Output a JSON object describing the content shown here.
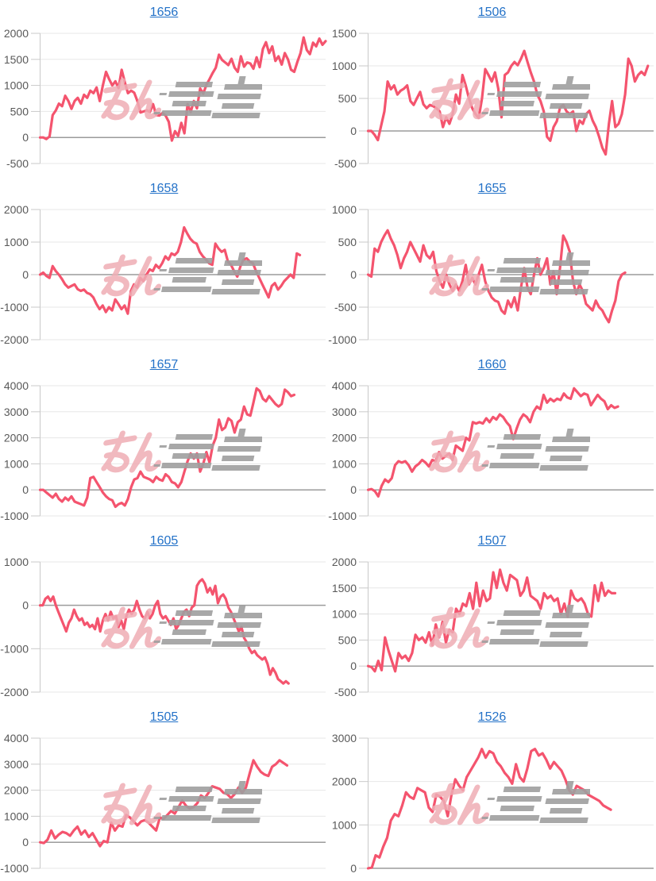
{
  "page": {
    "background": "#ffffff"
  },
  "chart_style": {
    "line_color": "#f4546e",
    "grid_color": "#e7e7e7",
    "zero_line_color": "#9b9b9b",
    "axis_color": "#c9c9c9",
    "tick_label_color": "#595959",
    "title_color": "#2472c8"
  },
  "watermark": {
    "icon": "site-logo-watermark",
    "pink_text": "みん",
    "gray_text_stylized": "logo glyphs with speed lines",
    "pink_color": "#efadb5",
    "gray_color": "#9f9f9f"
  },
  "chart_data": [
    {
      "type": "line",
      "title": "1656",
      "ylim": [
        -500,
        2000
      ],
      "ytick_step": 500,
      "end_frac": 1.0,
      "values": [
        0,
        0,
        -30,
        20,
        430,
        520,
        650,
        600,
        800,
        700,
        550,
        700,
        760,
        650,
        820,
        760,
        900,
        850,
        960,
        700,
        1000,
        1260,
        1120,
        1000,
        1080,
        950,
        1300,
        1060,
        850,
        900,
        860,
        700,
        480,
        500,
        520,
        490,
        640,
        430,
        420,
        470,
        420,
        300,
        -60,
        120,
        30,
        280,
        80,
        640,
        490,
        700,
        560,
        940,
        840,
        1010,
        1120,
        1240,
        1340,
        1590,
        1490,
        1440,
        1390,
        1510,
        1340,
        1260,
        1560,
        1360,
        1440,
        1420,
        1320,
        1540,
        1350,
        1700,
        1830,
        1620,
        1750,
        1470,
        1560,
        1400,
        1620,
        1500,
        1300,
        1260,
        1450,
        1620,
        1920,
        1680,
        1600,
        1820,
        1750,
        1900,
        1780,
        1850
      ]
    },
    {
      "type": "line",
      "title": "1506",
      "ylim": [
        -500,
        1500
      ],
      "ytick_step": 500,
      "end_frac": 0.98,
      "values": [
        0,
        0,
        -60,
        -140,
        80,
        300,
        760,
        640,
        700,
        560,
        620,
        650,
        700,
        460,
        400,
        500,
        600,
        410,
        350,
        400,
        380,
        350,
        300,
        60,
        210,
        110,
        260,
        560,
        420,
        860,
        700,
        500,
        350,
        260,
        200,
        500,
        950,
        860,
        760,
        900,
        650,
        210,
        860,
        900,
        1000,
        1060,
        1010,
        1110,
        1230,
        1060,
        900,
        760,
        560,
        460,
        300,
        -90,
        -150,
        60,
        150,
        360,
        400,
        300,
        260,
        300,
        0,
        160,
        110,
        260,
        310,
        160,
        60,
        -90,
        -260,
        -360,
        110,
        460,
        60,
        110,
        260,
        560,
        1110,
        1000,
        760,
        860,
        910,
        860,
        1000
      ]
    },
    {
      "type": "line",
      "title": "1658",
      "ylim": [
        -2000,
        2000
      ],
      "ytick_step": 1000,
      "end_frac": 0.91,
      "values": [
        0,
        60,
        -40,
        -100,
        260,
        110,
        0,
        -140,
        -300,
        -400,
        -350,
        -300,
        -450,
        -500,
        -460,
        -560,
        -600,
        -700,
        -900,
        -1060,
        -950,
        -1150,
        -1000,
        -1100,
        -760,
        -900,
        -1060,
        -950,
        -1200,
        -500,
        -300,
        -400,
        -100,
        -200,
        0,
        160,
        110,
        300,
        200,
        350,
        560,
        460,
        650,
        600,
        700,
        1000,
        1450,
        1260,
        1100,
        1000,
        950,
        700,
        560,
        460,
        350,
        300,
        950,
        800,
        700,
        760,
        400,
        300,
        100,
        -60,
        260,
        460,
        500,
        400,
        350,
        100,
        -100,
        -300,
        -500,
        -700,
        -350,
        -260,
        -460,
        -350,
        -200,
        -100,
        0,
        -100,
        650,
        600
      ]
    },
    {
      "type": "line",
      "title": "1655",
      "ylim": [
        -1000,
        1000
      ],
      "ytick_step": 500,
      "end_frac": 0.9,
      "values": [
        0,
        -30,
        400,
        350,
        500,
        600,
        680,
        550,
        450,
        300,
        100,
        250,
        350,
        500,
        400,
        300,
        200,
        450,
        300,
        250,
        350,
        50,
        -100,
        -200,
        0,
        -150,
        -250,
        -150,
        -250,
        -100,
        150,
        -150,
        -50,
        -150,
        0,
        150,
        -100,
        -250,
        -350,
        -400,
        -420,
        -550,
        -600,
        -400,
        -500,
        -350,
        -550,
        -200,
        100,
        -200,
        -300,
        0,
        250,
        0,
        100,
        250,
        -150,
        50,
        -300,
        100,
        600,
        500,
        350,
        -100,
        -300,
        -150,
        -250,
        -450,
        -500,
        -550,
        -400,
        -500,
        -550,
        -650,
        -730,
        -550,
        -400,
        -100,
        0,
        30
      ]
    },
    {
      "type": "line",
      "title": "1657",
      "ylim": [
        -1000,
        4000
      ],
      "ytick_step": 1000,
      "end_frac": 0.89,
      "values": [
        0,
        0,
        -100,
        -200,
        -300,
        -150,
        -350,
        -450,
        -300,
        -400,
        -250,
        -450,
        -500,
        -550,
        -600,
        -300,
        450,
        500,
        300,
        100,
        -100,
        -250,
        -350,
        -400,
        -650,
        -550,
        -500,
        -600,
        -350,
        100,
        400,
        450,
        700,
        500,
        450,
        400,
        300,
        500,
        400,
        350,
        600,
        500,
        300,
        250,
        100,
        300,
        700,
        1100,
        1400,
        1200,
        1400,
        700,
        1000,
        1450,
        1050,
        1700,
        2000,
        2700,
        2300,
        2400,
        2750,
        2650,
        2200,
        2600,
        2700,
        3200,
        2900,
        2850,
        3350,
        3900,
        3800,
        3500,
        3400,
        3600,
        3450,
        3300,
        3200,
        3300,
        3850,
        3750,
        3600,
        3650
      ]
    },
    {
      "type": "line",
      "title": "1660",
      "ylim": [
        -1000,
        4000
      ],
      "ytick_step": 1000,
      "end_frac": 0.875,
      "values": [
        0,
        30,
        -50,
        -250,
        150,
        400,
        300,
        450,
        950,
        1100,
        1050,
        1100,
        950,
        700,
        900,
        1000,
        1150,
        1050,
        900,
        1150,
        1100,
        1450,
        1200,
        1300,
        1400,
        1150,
        1700,
        1600,
        1500,
        2000,
        1900,
        2600,
        2550,
        2600,
        2550,
        2750,
        2600,
        2800,
        2700,
        2900,
        2800,
        2600,
        2450,
        1950,
        2350,
        2700,
        2900,
        2800,
        2600,
        3000,
        3200,
        3100,
        3650,
        3350,
        3500,
        3400,
        3500,
        3450,
        3700,
        3550,
        3500,
        3900,
        3750,
        3600,
        3700,
        3650,
        3250,
        3450,
        3650,
        3500,
        3400,
        3100,
        3250,
        3150,
        3200
      ]
    },
    {
      "type": "line",
      "title": "1605",
      "ylim": [
        -2000,
        1000
      ],
      "ytick_step": 1000,
      "end_frac": 0.87,
      "values": [
        0,
        0,
        150,
        200,
        100,
        200,
        0,
        -150,
        -300,
        -450,
        -600,
        -400,
        -300,
        -100,
        -250,
        -350,
        -300,
        -450,
        -400,
        -500,
        -450,
        -550,
        -300,
        -600,
        -350,
        -200,
        -350,
        -150,
        -300,
        -250,
        -500,
        -350,
        -550,
        -250,
        -100,
        -200,
        -100,
        100,
        -100,
        -250,
        -300,
        -150,
        -300,
        -200,
        0,
        100,
        -200,
        -300,
        -250,
        -350,
        -450,
        -300,
        -550,
        -450,
        -300,
        -150,
        -100,
        -250,
        -50,
        0,
        450,
        550,
        600,
        500,
        300,
        400,
        250,
        450,
        50,
        200,
        250,
        150,
        -50,
        -150,
        -300,
        -450,
        -600,
        -500,
        -750,
        -850,
        -1000,
        -1100,
        -1050,
        -1150,
        -1200,
        -1250,
        -1200,
        -1350,
        -1600,
        -1450,
        -1550,
        -1700,
        -1750,
        -1800,
        -1750,
        -1800
      ]
    },
    {
      "type": "line",
      "title": "1507",
      "ylim": [
        -500,
        2000
      ],
      "ytick_step": 500,
      "end_frac": 0.865,
      "values": [
        0,
        -20,
        -100,
        100,
        -80,
        550,
        300,
        100,
        -100,
        250,
        150,
        200,
        100,
        250,
        600,
        500,
        550,
        450,
        650,
        400,
        800,
        550,
        850,
        450,
        700,
        650,
        1100,
        1000,
        1200,
        1150,
        1400,
        1100,
        1600,
        1150,
        1450,
        1250,
        1300,
        1800,
        1500,
        1850,
        1600,
        1450,
        1750,
        1700,
        1650,
        1350,
        1450,
        1700,
        1350,
        1300,
        1250,
        1100,
        1400,
        1300,
        1350,
        1250,
        1300,
        1000,
        1200,
        950,
        1450,
        1300,
        1250,
        1300,
        1200,
        1000,
        950,
        1550,
        1250,
        1600,
        1350,
        1450,
        1400,
        1400
      ]
    },
    {
      "type": "line",
      "title": "1505",
      "ylim": [
        -1000,
        4000
      ],
      "ytick_step": 1000,
      "end_frac": 0.865,
      "values": [
        0,
        -30,
        100,
        450,
        150,
        300,
        400,
        350,
        250,
        450,
        600,
        300,
        450,
        200,
        350,
        100,
        -150,
        50,
        0,
        750,
        450,
        650,
        600,
        1050,
        950,
        800,
        650,
        800,
        850,
        750,
        600,
        450,
        950,
        900,
        1050,
        1200,
        1100,
        1350,
        1600,
        1400,
        1300,
        1350,
        1500,
        1800,
        1700,
        1900,
        2150,
        2100,
        2050,
        1900,
        1850,
        1700,
        1850,
        2100,
        1900,
        2100,
        2650,
        3150,
        2900,
        2700,
        2600,
        2550,
        2900,
        3000,
        3150,
        3050,
        2950
      ]
    },
    {
      "type": "line",
      "title": "1526",
      "ylim": [
        0,
        3000
      ],
      "ytick_step": 1000,
      "end_frac": 0.85,
      "values": [
        0,
        20,
        300,
        250,
        500,
        700,
        1100,
        1250,
        1200,
        1450,
        1750,
        1650,
        1600,
        1850,
        1800,
        1750,
        1400,
        1300,
        1700,
        1650,
        1550,
        1200,
        1700,
        2050,
        1900,
        1800,
        2100,
        2250,
        2400,
        2550,
        2750,
        2550,
        2700,
        2650,
        2450,
        2350,
        2200,
        2100,
        1950,
        2400,
        2100,
        2000,
        2300,
        2700,
        2750,
        2600,
        2650,
        2500,
        2300,
        2450,
        2350,
        2250,
        2050,
        1800,
        1700,
        1900,
        1850,
        1800,
        1700,
        1650,
        1600,
        1550,
        1450,
        1400,
        1350
      ]
    }
  ]
}
